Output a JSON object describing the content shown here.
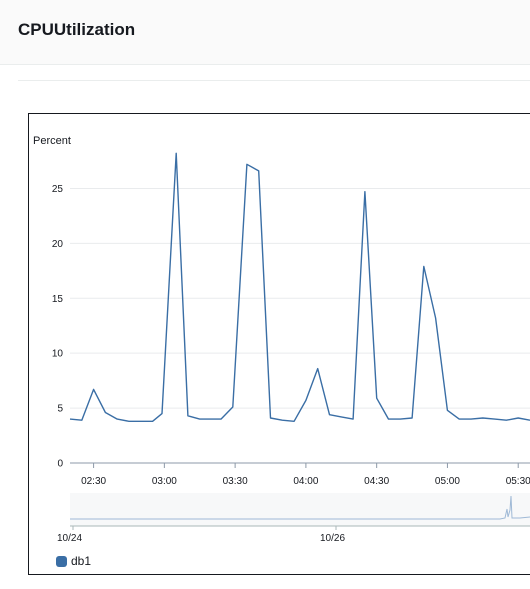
{
  "header": {
    "title": "CPUUtilization"
  },
  "colors": {
    "series": "#3a6ea5",
    "grid": "#e9ebed",
    "navigator": "#9fb9d6"
  },
  "chart_data": {
    "type": "line",
    "ylabel": "Percent",
    "ylim": [
      0,
      28.5
    ],
    "yticks": [
      0,
      5,
      10,
      15,
      20,
      25
    ],
    "xlim": [
      "02:20",
      "05:35"
    ],
    "xticks": [
      "02:30",
      "03:00",
      "03:30",
      "04:00",
      "04:30",
      "05:00",
      "05:30"
    ],
    "grid": true,
    "legend_position": "bottom-left",
    "series": [
      {
        "name": "db1",
        "x": [
          "02:20",
          "02:25",
          "02:30",
          "02:35",
          "02:40",
          "02:45",
          "02:50",
          "02:55",
          "02:59",
          "03:05",
          "03:10",
          "03:15",
          "03:20",
          "03:24",
          "03:29",
          "03:35",
          "03:40",
          "03:45",
          "03:50",
          "03:55",
          "04:00",
          "04:05",
          "04:10",
          "04:15",
          "04:20",
          "04:25",
          "04:30",
          "04:35",
          "04:40",
          "04:45",
          "04:50",
          "04:55",
          "05:00",
          "05:05",
          "05:10",
          "05:15",
          "05:20",
          "05:25",
          "05:30",
          "05:35"
        ],
        "values": [
          4.0,
          3.9,
          6.7,
          4.6,
          4.0,
          3.8,
          3.8,
          3.8,
          4.5,
          28.2,
          4.3,
          4.0,
          4.0,
          4.0,
          5.1,
          27.2,
          26.6,
          4.1,
          3.9,
          3.8,
          5.7,
          8.6,
          4.4,
          4.2,
          4.0,
          24.7,
          5.9,
          4.0,
          4.0,
          4.1,
          17.9,
          13.2,
          4.8,
          4.0,
          4.0,
          4.1,
          4.0,
          3.9,
          4.1,
          3.9
        ]
      }
    ],
    "navigator": {
      "tick_labels": [
        "10/24",
        "10/26"
      ]
    }
  }
}
